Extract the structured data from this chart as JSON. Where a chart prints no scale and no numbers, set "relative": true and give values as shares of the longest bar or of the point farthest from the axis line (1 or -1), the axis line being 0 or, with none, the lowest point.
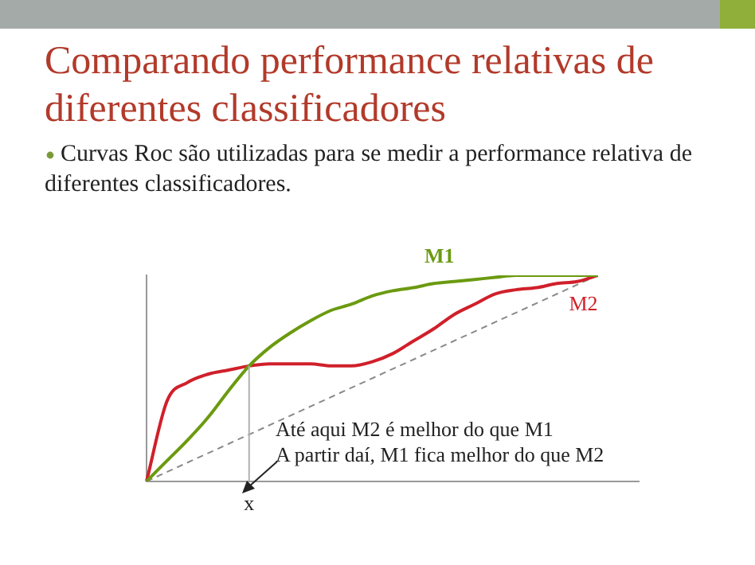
{
  "chart_data": {
    "type": "line",
    "title": "Comparando performance relativas de diferentes classificadores",
    "subtitle": "Curvas Roc são utilizadas para se medir a performance relativa de diferentes classificadores.",
    "relative": true,
    "categories": [
      null,
      null,
      null,
      null,
      null,
      null,
      null,
      null,
      null,
      null,
      null,
      null,
      null,
      null,
      null,
      null,
      null,
      null,
      null,
      null,
      null,
      null,
      null,
      null,
      null
    ],
    "series": [
      {
        "name": "M1",
        "color": "#6b9a10",
        "values": [
          0,
          0.1,
          0.2,
          0.31,
          0.44,
          0.56,
          0.65,
          0.72,
          0.78,
          0.83,
          0.86,
          0.9,
          0.925,
          0.94,
          0.96,
          0.97,
          0.98,
          0.99,
          1,
          1,
          1,
          1,
          1,
          null,
          null
        ]
      },
      {
        "name": "M2",
        "color": "#d0202a",
        "values": [
          0,
          0.39,
          0.48,
          0.52,
          0.54,
          0.56,
          0.57,
          0.57,
          0.57,
          0.56,
          0.56,
          0.58,
          0.62,
          0.68,
          0.74,
          0.81,
          0.86,
          0.91,
          0.93,
          0.94,
          0.96,
          0.97,
          1,
          null,
          null
        ]
      },
      {
        "color": "#8a8a8a",
        "line_style": "dashed",
        "values": [
          0,
          null,
          null,
          null,
          null,
          null,
          null,
          null,
          null,
          null,
          null,
          null,
          null,
          null,
          null,
          null,
          null,
          null,
          null,
          null,
          null,
          null,
          1,
          null,
          null
        ]
      }
    ],
    "ref_lines": [
      {
        "axis": "x",
        "label": "x",
        "color": "#b0b0b0"
      }
    ],
    "annotations": [
      "Até aqui M2 é melhor do que M1",
      "A partir daí, M1 fica melhor do que M2"
    ],
    "legend": false,
    "grid": false,
    "marker": "none"
  }
}
